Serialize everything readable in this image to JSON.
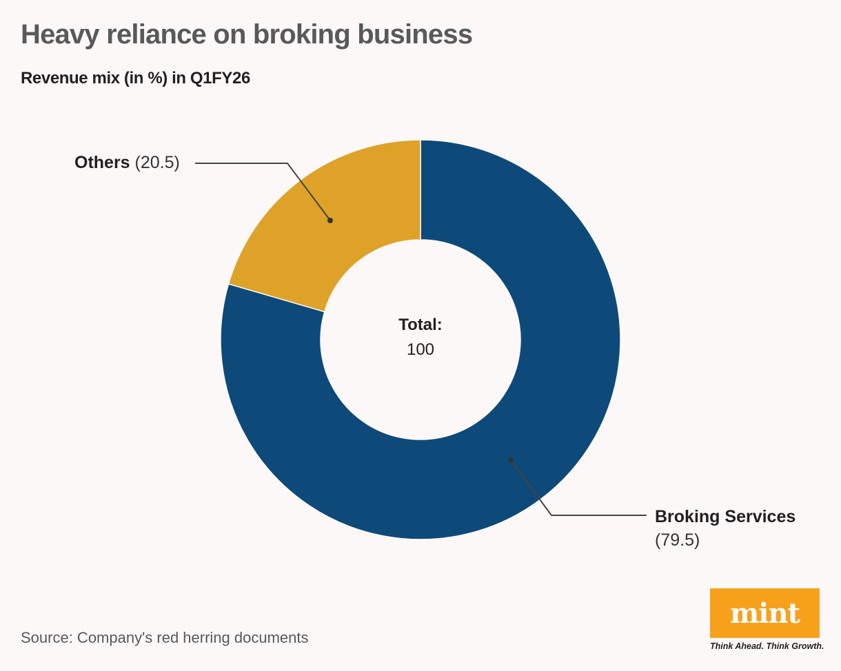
{
  "header": {
    "title": "Heavy reliance on broking business",
    "subtitle": "Revenue mix (in %) in Q1FY26"
  },
  "chart_data": {
    "type": "pie",
    "variant": "donut",
    "title": "Heavy reliance on broking business",
    "subtitle": "Revenue mix (in %) in Q1FY26",
    "categories": [
      "Broking Services",
      "Others"
    ],
    "values": [
      79.5,
      20.5
    ],
    "colors": [
      "#0d4a79",
      "#dea228"
    ],
    "center_label": "Total:",
    "center_value": "100",
    "labels_position": "callouts"
  },
  "labels": {
    "others": {
      "name": "Others",
      "value": "(20.5)"
    },
    "broking": {
      "name": "Broking Services",
      "value": "(79.5)"
    }
  },
  "center": {
    "label": "Total:",
    "value": "100"
  },
  "footer": {
    "source": "Source: Company's red herring documents",
    "logo": "mint",
    "tagline": "Think Ahead. Think Growth."
  }
}
